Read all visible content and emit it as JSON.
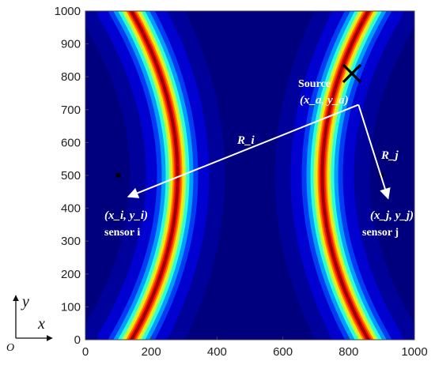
{
  "plot": {
    "x_ticks": [
      "0",
      "200",
      "400",
      "600",
      "800",
      "1000"
    ],
    "y_ticks": [
      "0",
      "100",
      "200",
      "300",
      "400",
      "500",
      "600",
      "700",
      "800",
      "900",
      "1000"
    ],
    "xlim": [
      0,
      1000
    ],
    "ylim": [
      0,
      1000
    ],
    "colormap": "jet",
    "colors": {
      "background": "#00007f",
      "arrow": "#ffffff",
      "marker": "#000000"
    }
  },
  "hyperbola": {
    "left_vertex": [
      280,
      500
    ],
    "right_vertex": [
      720,
      500
    ],
    "left_top_end": [
      140,
      1000
    ],
    "right_top_end": [
      860,
      1000
    ]
  },
  "source": {
    "label": "Source",
    "coords": "(x_a, y_a)",
    "position": [
      810,
      810
    ],
    "marker_icon": "x-cross-icon"
  },
  "sensor_i": {
    "coords": "(x_i, y_i)",
    "label": "sensor i",
    "position": [
      100,
      500
    ]
  },
  "sensor_j": {
    "coords": "(x_j, y_j)",
    "label": "sensor j",
    "position": [
      900,
      500
    ]
  },
  "distances": {
    "r_i": "R_i",
    "r_j": "R_j"
  },
  "coordinate_system": {
    "origin": "O",
    "x_axis": "x",
    "y_axis": "y"
  }
}
